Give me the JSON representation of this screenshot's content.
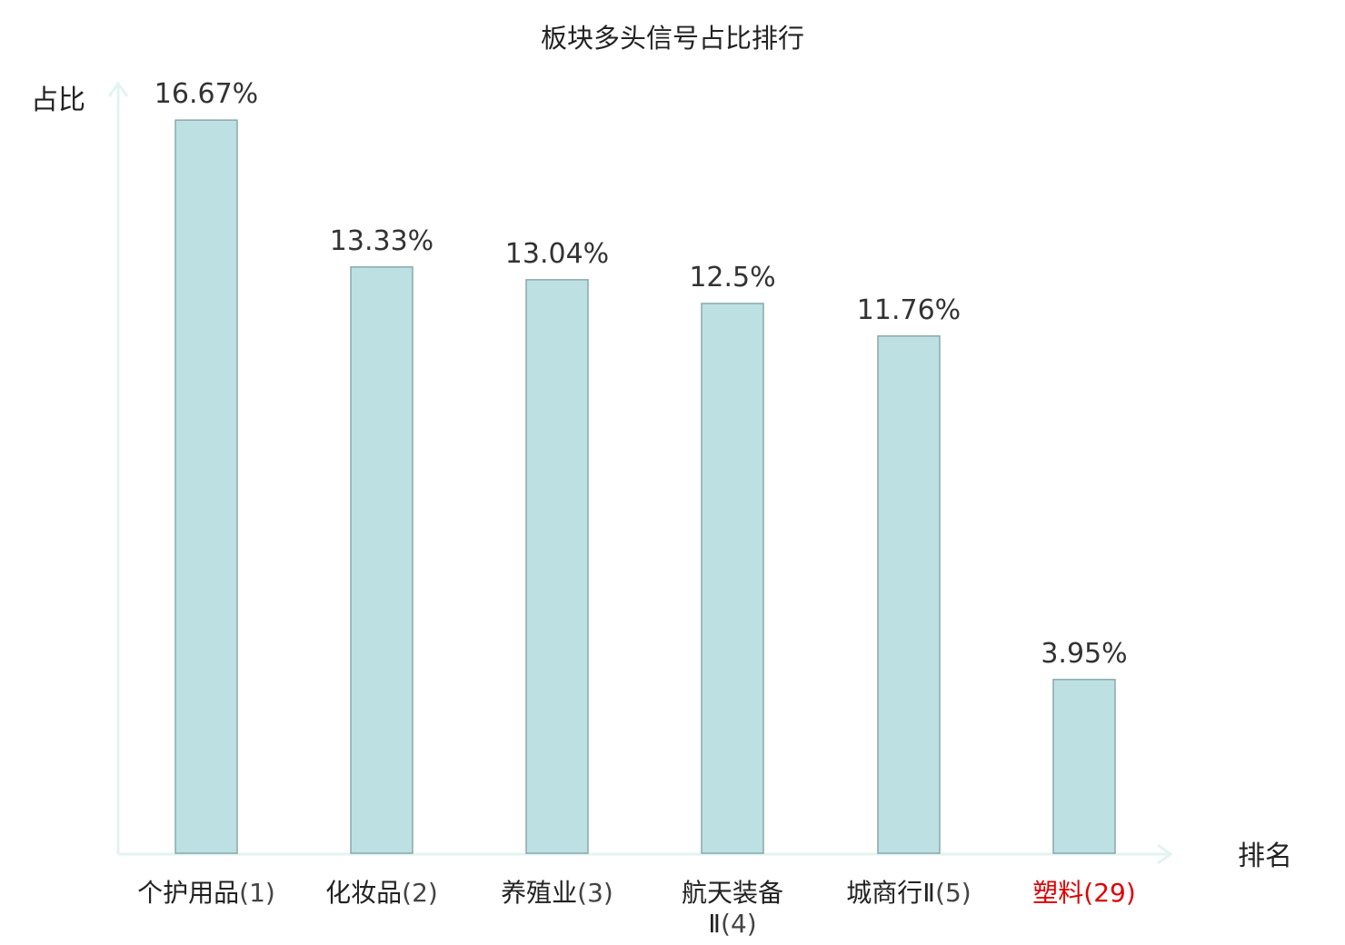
{
  "chart_data": {
    "type": "bar",
    "title": "板块多头信号占比排行",
    "ylabel": "占比",
    "xlabel": "排名",
    "ylim": [
      0,
      17.5
    ],
    "grid": false,
    "categories": [
      {
        "name": "个护用品",
        "rank": "(1)"
      },
      {
        "name": "化妆品",
        "rank": "(2)"
      },
      {
        "name": "养殖业",
        "rank": "(3)"
      },
      {
        "name": "航天装备Ⅱ",
        "rank": "(4)"
      },
      {
        "name": "城商行Ⅱ",
        "rank": "(5)"
      },
      {
        "name": "塑料",
        "rank": "(29)"
      }
    ],
    "values": [
      16.67,
      13.33,
      13.04,
      12.5,
      11.76,
      3.95
    ],
    "data_labels": [
      "16.67%",
      "13.33%",
      "13.04%",
      "12.5%",
      "11.76%",
      "3.95%"
    ],
    "highlight_index": 5,
    "colors": {
      "bar_fill": "#bde1e3",
      "bar_stroke": "#8aa8aa",
      "axis": "#e3f3f1",
      "highlight_text": "#e00000",
      "text": "#222222"
    }
  }
}
